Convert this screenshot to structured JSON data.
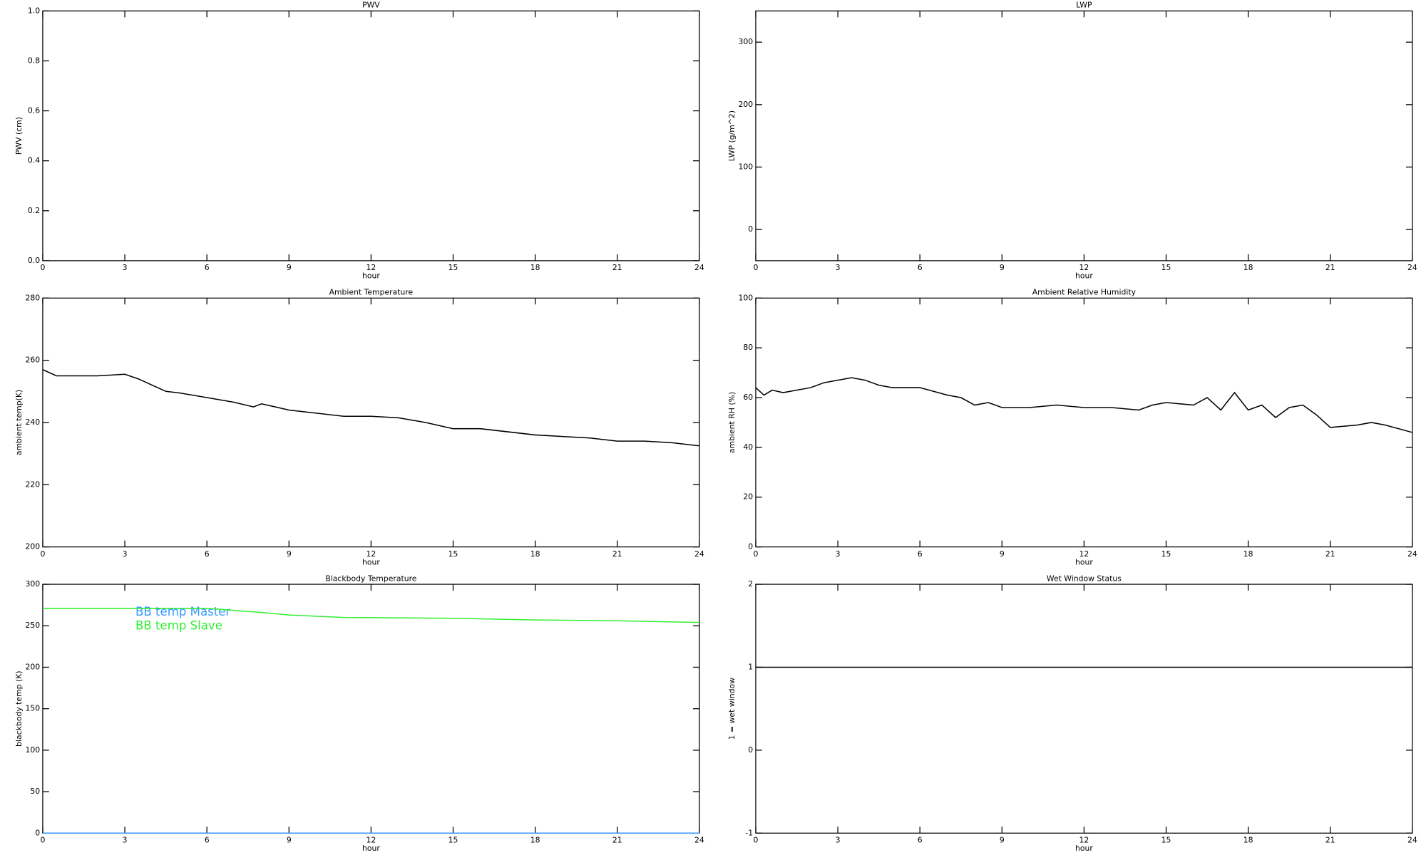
{
  "chart_data": [
    {
      "type": "line",
      "title": "PWV",
      "xlabel": "hour",
      "ylabel": "PWV (cm)",
      "xlim": [
        0,
        24
      ],
      "xticks": [
        0,
        3,
        6,
        9,
        12,
        15,
        18,
        21,
        24
      ],
      "ylim": [
        0,
        1
      ],
      "yticks": [
        {
          "value": 0,
          "label": "0.0"
        },
        0.2,
        0.4,
        0.6,
        0.8,
        {
          "value": 1,
          "label": "1.0"
        }
      ],
      "x": [],
      "series": []
    },
    {
      "type": "line",
      "title": "LWP",
      "xlabel": "hour",
      "ylabel": "LWP (g/m^2)",
      "xlim": [
        0,
        24
      ],
      "xticks": [
        0,
        3,
        6,
        9,
        12,
        15,
        18,
        21,
        24
      ],
      "ylim": [
        -50,
        350
      ],
      "yticks": [
        0,
        100,
        200,
        300
      ],
      "x": [],
      "series": []
    },
    {
      "type": "line",
      "title": "Ambient Temperature",
      "xlabel": "hour",
      "ylabel": "ambient temp(K)",
      "xlim": [
        0,
        24
      ],
      "xticks": [
        0,
        3,
        6,
        9,
        12,
        15,
        18,
        21,
        24
      ],
      "ylim": [
        200,
        280
      ],
      "yticks": [
        200,
        220,
        240,
        260,
        280
      ],
      "x": [
        0,
        0.5,
        1,
        2,
        3,
        3.5,
        4,
        4.5,
        5,
        6,
        7,
        7.7,
        8,
        9,
        10,
        11,
        12,
        13,
        14,
        15,
        16,
        17,
        18,
        19,
        20,
        21,
        22,
        23,
        24
      ],
      "series": [
        {
          "color": "#000000",
          "values": [
            257,
            255,
            255,
            255,
            255.5,
            254,
            252,
            250,
            249.5,
            248,
            246.5,
            245,
            246,
            244,
            243,
            242,
            242,
            241.5,
            240,
            238,
            238,
            237,
            236,
            235.5,
            235,
            234,
            234,
            233.5,
            232.5
          ]
        }
      ]
    },
    {
      "type": "line",
      "title": "Ambient Relative Humidity",
      "xlabel": "hour",
      "ylabel": "ambient RH (%)",
      "xlim": [
        0,
        24
      ],
      "xticks": [
        0,
        3,
        6,
        9,
        12,
        15,
        18,
        21,
        24
      ],
      "ylim": [
        0,
        100
      ],
      "yticks": [
        0,
        20,
        40,
        60,
        80,
        100
      ],
      "x": [
        0,
        0.3,
        0.6,
        1,
        2,
        2.5,
        3,
        3.5,
        4,
        4.5,
        5,
        6,
        7,
        7.5,
        8,
        8.5,
        9,
        10,
        11,
        12,
        13,
        14,
        14.5,
        15,
        16,
        16.5,
        17,
        17.5,
        18,
        18.5,
        19,
        19.5,
        20,
        20.5,
        21,
        22,
        22.5,
        23,
        24
      ],
      "series": [
        {
          "color": "#000000",
          "values": [
            64,
            61,
            63,
            62,
            64,
            66,
            67,
            68,
            67,
            65,
            64,
            64,
            61,
            60,
            57,
            58,
            56,
            56,
            57,
            56,
            56,
            55,
            57,
            58,
            57,
            60,
            55,
            62,
            55,
            57,
            52,
            56,
            57,
            53,
            48,
            49,
            50,
            49,
            46
          ]
        }
      ]
    },
    {
      "type": "line",
      "title": "Blackbody Temperature",
      "xlabel": "hour",
      "ylabel": "blackbody temp (K)",
      "xlim": [
        0,
        24
      ],
      "xticks": [
        0,
        3,
        6,
        9,
        12,
        15,
        18,
        21,
        24
      ],
      "ylim": [
        0,
        300
      ],
      "yticks": [
        0,
        50,
        100,
        150,
        200,
        250,
        300
      ],
      "x": [
        0,
        3,
        6,
        8,
        9,
        11,
        15,
        18,
        21,
        24
      ],
      "series": [
        {
          "name": "BB temp Master",
          "color": "#3399ff",
          "values": [
            0,
            0,
            0,
            0,
            0,
            0,
            0,
            0,
            0,
            0
          ]
        },
        {
          "name": "BB temp Slave",
          "color": "#33ee33",
          "values": [
            271,
            271,
            271,
            266,
            263,
            260,
            259,
            257,
            256,
            254
          ]
        }
      ]
    },
    {
      "type": "line",
      "title": "Wet Window Status",
      "xlabel": "hour",
      "ylabel": "1 = wet window",
      "xlim": [
        0,
        24
      ],
      "xticks": [
        0,
        3,
        6,
        9,
        12,
        15,
        18,
        21,
        24
      ],
      "ylim": [
        -1,
        2
      ],
      "yticks": [
        -1,
        0,
        1,
        2
      ],
      "x": [
        0,
        24
      ],
      "series": [
        {
          "color": "#000000",
          "values": [
            1,
            1
          ]
        }
      ]
    }
  ]
}
